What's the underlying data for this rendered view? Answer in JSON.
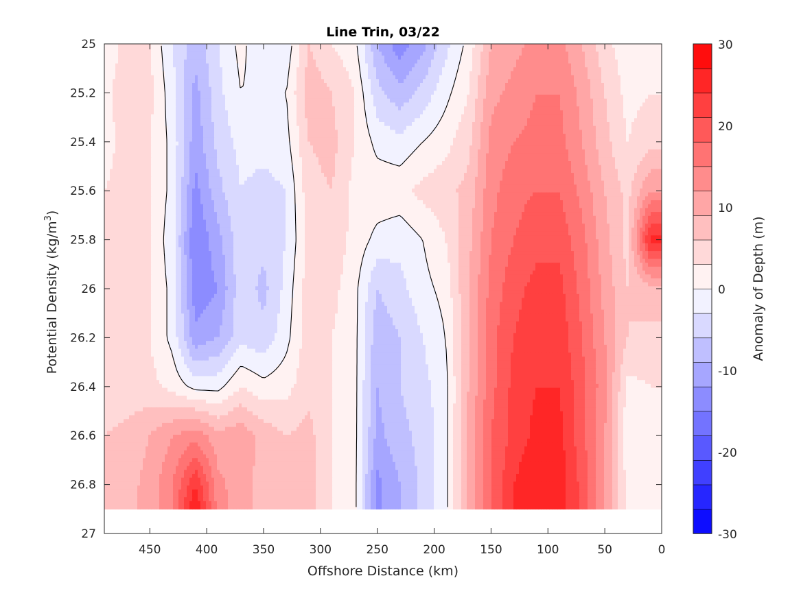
{
  "chart_data": {
    "type": "heatmap",
    "title": "Line Trin, 03/22",
    "xlabel": "Offshore Distance (km)",
    "ylabel_main": "Potential Density (kg/m",
    "ylabel_sup": "3",
    "ylabel_close": ")",
    "xlim": [
      490,
      0
    ],
    "ylim": [
      25,
      27
    ],
    "y_reversed": true,
    "x_ticks": [
      450,
      400,
      350,
      300,
      250,
      200,
      150,
      100,
      50,
      0
    ],
    "x_tick_labels": [
      "450",
      "400",
      "350",
      "300",
      "250",
      "200",
      "150",
      "100",
      "50",
      "0"
    ],
    "y_ticks": [
      25,
      25.2,
      25.4,
      25.6,
      25.8,
      26,
      26.2,
      26.4,
      26.6,
      26.8,
      27
    ],
    "y_tick_labels": [
      "25",
      "25.2",
      "25.4",
      "25.6",
      "25.8",
      "26",
      "26.2",
      "26.4",
      "26.6",
      "26.8",
      "27"
    ],
    "colorbar": {
      "label": "Anomaly of Depth (m)",
      "range": [
        -30,
        30
      ],
      "ticks": [
        30,
        20,
        10,
        0,
        -10,
        -20,
        -30
      ],
      "tick_labels": [
        "30",
        "20",
        "10",
        "0",
        "-10",
        "-20",
        "-30"
      ],
      "levels": 20,
      "low_color": "#0000ff",
      "mid_color": "#ffffff",
      "high_color": "#ff0000"
    },
    "data_bottom_density": 26.9,
    "grid_x": [
      490,
      470,
      450,
      430,
      410,
      390,
      370,
      350,
      330,
      310,
      290,
      270,
      250,
      230,
      210,
      190,
      170,
      150,
      130,
      110,
      90,
      70,
      50,
      30,
      10
    ],
    "grid_y": [
      25.0,
      25.2,
      25.4,
      25.6,
      25.8,
      26.0,
      26.2,
      26.4,
      26.6,
      26.8,
      26.9
    ],
    "anomaly_grid": [
      [
        1,
        4,
        3,
        -3,
        -8,
        -3,
        1,
        -3,
        -2,
        6,
        3,
        1,
        -9,
        -14,
        -10,
        -4,
        1,
        9,
        11,
        13,
        13,
        9,
        4,
        1,
        1
      ],
      [
        2,
        5,
        4,
        -2,
        -10,
        -4,
        0,
        -1,
        0,
        8,
        6,
        3,
        -5,
        -8,
        -5,
        -1,
        3,
        11,
        13,
        15,
        15,
        11,
        6,
        2,
        3
      ],
      [
        2,
        4,
        3,
        -1,
        -11,
        -5,
        -2,
        -2,
        -1,
        6,
        7,
        3,
        -1,
        -2,
        0,
        2,
        5,
        13,
        15,
        16,
        16,
        12,
        7,
        3,
        5
      ],
      [
        3,
        4,
        3,
        -1,
        -13,
        -7,
        -3,
        -4,
        -3,
        5,
        6,
        2,
        2,
        2,
        4,
        5,
        7,
        14,
        17,
        18,
        18,
        14,
        9,
        5,
        12
      ],
      [
        3,
        4,
        3,
        -2,
        -15,
        -10,
        -4,
        -5,
        -3,
        4,
        5,
        2,
        -1,
        -2,
        0,
        3,
        8,
        15,
        18,
        20,
        20,
        16,
        10,
        5,
        25
      ],
      [
        3,
        4,
        3,
        -1,
        -14,
        -12,
        -4,
        -7,
        -2,
        5,
        4,
        1,
        -6,
        -4,
        -1,
        1,
        9,
        16,
        20,
        22,
        22,
        17,
        11,
        6,
        8
      ],
      [
        3,
        4,
        3,
        -1,
        -11,
        -9,
        -4,
        -5,
        -1,
        5,
        3,
        1,
        -8,
        -6,
        -3,
        0,
        9,
        17,
        21,
        23,
        23,
        18,
        12,
        6,
        5
      ],
      [
        3,
        4,
        4,
        2,
        -1,
        -1,
        3,
        1,
        2,
        5,
        3,
        1,
        -9,
        -6,
        -4,
        -1,
        9,
        17,
        22,
        24,
        24,
        19,
        13,
        2,
        3
      ],
      [
        6,
        7,
        9,
        12,
        14,
        10,
        11,
        8,
        6,
        7,
        3,
        1,
        -10,
        -7,
        -5,
        -1,
        10,
        18,
        22,
        25,
        25,
        19,
        12,
        1,
        1
      ],
      [
        7,
        8,
        10,
        15,
        24,
        13,
        10,
        8,
        6,
        7,
        3,
        1,
        -13,
        -9,
        -5,
        -1,
        10,
        18,
        24,
        27,
        26,
        20,
        12,
        2,
        1
      ],
      [
        7,
        8,
        10,
        15,
        27,
        14,
        10,
        8,
        6,
        7,
        3,
        1,
        -13,
        -9,
        -5,
        -1,
        10,
        18,
        24,
        27,
        26,
        20,
        12,
        2,
        1
      ]
    ]
  }
}
